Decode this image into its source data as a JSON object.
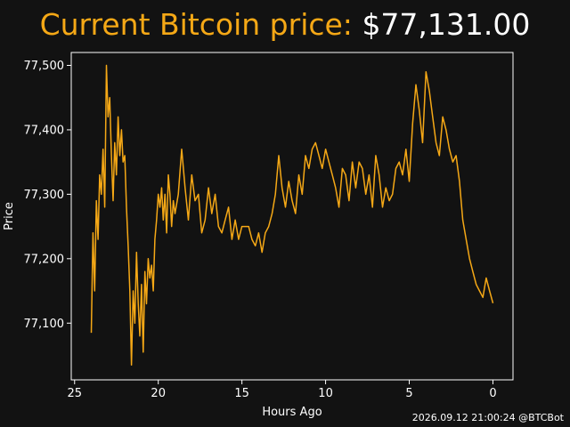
{
  "title": {
    "label": "Current Bitcoin price:",
    "price": "$77,131.00"
  },
  "footer": "2026.09.12 21:00:24 @BTCBot",
  "colors": {
    "background": "#121212",
    "line": "#f5a816",
    "axes": "#ffffff",
    "title_label": "#f5a816",
    "title_price": "#ffffff"
  },
  "chart_data": {
    "type": "line",
    "xlabel": "Hours Ago",
    "ylabel": "Price",
    "x_inverted": true,
    "xlim": [
      25.2,
      -1.2
    ],
    "ylim": [
      77012,
      77520
    ],
    "xticks": [
      25,
      20,
      15,
      10,
      5,
      0
    ],
    "yticks": [
      77100,
      77200,
      77300,
      77400,
      77500
    ],
    "ytick_labels": [
      "77,100",
      "77,200",
      "77,300",
      "77,400",
      "77,500"
    ],
    "grid": false,
    "series": [
      {
        "x": [
          24.0,
          23.9,
          23.8,
          23.7,
          23.6,
          23.5,
          23.4,
          23.3,
          23.2,
          23.1,
          23.0,
          22.9,
          22.8,
          22.7,
          22.6,
          22.5,
          22.4,
          22.3,
          22.2,
          22.1,
          22.0,
          21.9,
          21.8,
          21.7,
          21.6,
          21.5,
          21.4,
          21.3,
          21.2,
          21.1,
          21.0,
          20.9,
          20.8,
          20.7,
          20.6,
          20.5,
          20.4,
          20.3,
          20.2,
          20.1,
          20.0,
          19.9,
          19.8,
          19.7,
          19.6,
          19.5,
          19.4,
          19.3,
          19.2,
          19.1,
          19.0,
          18.8,
          18.6,
          18.4,
          18.2,
          18.0,
          17.8,
          17.6,
          17.4,
          17.2,
          17.0,
          16.8,
          16.6,
          16.4,
          16.2,
          16.0,
          15.8,
          15.6,
          15.4,
          15.2,
          15.0,
          14.8,
          14.6,
          14.4,
          14.2,
          14.0,
          13.8,
          13.6,
          13.4,
          13.2,
          13.0,
          12.8,
          12.6,
          12.4,
          12.2,
          12.0,
          11.8,
          11.6,
          11.4,
          11.2,
          11.0,
          10.8,
          10.6,
          10.4,
          10.2,
          10.0,
          9.8,
          9.6,
          9.4,
          9.2,
          9.0,
          8.8,
          8.6,
          8.4,
          8.2,
          8.0,
          7.8,
          7.6,
          7.4,
          7.2,
          7.0,
          6.8,
          6.6,
          6.4,
          6.2,
          6.0,
          5.8,
          5.6,
          5.4,
          5.2,
          5.0,
          4.8,
          4.6,
          4.4,
          4.2,
          4.0,
          3.8,
          3.6,
          3.4,
          3.2,
          3.0,
          2.8,
          2.6,
          2.4,
          2.2,
          2.0,
          1.8,
          1.6,
          1.4,
          1.2,
          1.0,
          0.8,
          0.6,
          0.4,
          0.2,
          0.0
        ],
        "y": [
          77085,
          77240,
          77150,
          77290,
          77230,
          77330,
          77300,
          77370,
          77280,
          77500,
          77420,
          77450,
          77360,
          77290,
          77380,
          77330,
          77420,
          77360,
          77400,
          77350,
          77360,
          77280,
          77220,
          77150,
          77035,
          77150,
          77100,
          77210,
          77130,
          77080,
          77160,
          77055,
          77180,
          77130,
          77200,
          77170,
          77190,
          77150,
          77230,
          77260,
          77300,
          77280,
          77310,
          77260,
          77300,
          77240,
          77330,
          77300,
          77250,
          77290,
          77270,
          77300,
          77370,
          77310,
          77260,
          77330,
          77290,
          77300,
          77240,
          77260,
          77310,
          77270,
          77300,
          77250,
          77240,
          77260,
          77280,
          77230,
          77260,
          77230,
          77250,
          77250,
          77250,
          77230,
          77220,
          77240,
          77210,
          77240,
          77250,
          77270,
          77300,
          77360,
          77310,
          77280,
          77320,
          77290,
          77270,
          77330,
          77300,
          77360,
          77340,
          77370,
          77380,
          77360,
          77340,
          77370,
          77350,
          77330,
          77310,
          77280,
          77340,
          77330,
          77290,
          77350,
          77310,
          77350,
          77340,
          77300,
          77330,
          77280,
          77360,
          77330,
          77280,
          77310,
          77290,
          77300,
          77340,
          77350,
          77330,
          77370,
          77320,
          77410,
          77470,
          77430,
          77380,
          77490,
          77460,
          77420,
          77380,
          77360,
          77420,
          77400,
          77370,
          77350,
          77360,
          77320,
          77260,
          77230,
          77200,
          77180,
          77160,
          77150,
          77140,
          77170,
          77150,
          77131
        ]
      }
    ]
  }
}
